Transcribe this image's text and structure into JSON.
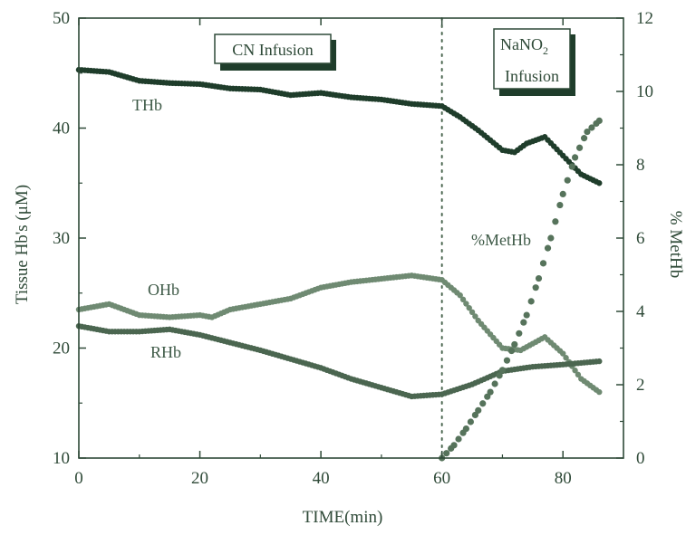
{
  "chart_data": {
    "type": "line",
    "xlabel": "TIME(min)",
    "ylabel": "Tissue Hb's (μM)",
    "y2label": "% MetHb",
    "xlim": [
      0,
      90
    ],
    "ylim": [
      10,
      50
    ],
    "y2lim": [
      0,
      12
    ],
    "x_ticks": [
      0,
      20,
      40,
      60,
      80
    ],
    "y_ticks": [
      10,
      20,
      30,
      40,
      50
    ],
    "y2_ticks": [
      0,
      2,
      4,
      6,
      8,
      10,
      12
    ],
    "grid": false,
    "vline": 60,
    "annotations": [
      {
        "text": "CN Infusion"
      },
      {
        "text": "NaNO",
        "sub": "2",
        "text2": "Infusion"
      }
    ],
    "series": [
      {
        "name": "THb",
        "axis": "left",
        "color": "#1f3d2b",
        "x": [
          0,
          5,
          10,
          15,
          20,
          25,
          30,
          35,
          40,
          45,
          50,
          55,
          60,
          63,
          66,
          70,
          72,
          74,
          77,
          80,
          83,
          86
        ],
        "y": [
          45.3,
          45.1,
          44.3,
          44.1,
          44.0,
          43.6,
          43.5,
          43.0,
          43.2,
          42.8,
          42.6,
          42.2,
          42.0,
          41.0,
          39.8,
          38.0,
          37.8,
          38.6,
          39.2,
          37.5,
          35.8,
          35.0
        ]
      },
      {
        "name": "OHb",
        "axis": "left",
        "color": "#6f8a72",
        "x": [
          0,
          5,
          10,
          15,
          20,
          22,
          25,
          30,
          35,
          40,
          45,
          50,
          55,
          60,
          63,
          66,
          70,
          73,
          77,
          80,
          83,
          86
        ],
        "y": [
          23.5,
          24.0,
          23.0,
          22.8,
          23.0,
          22.8,
          23.5,
          24.0,
          24.5,
          25.5,
          26.0,
          26.3,
          26.6,
          26.2,
          24.8,
          22.5,
          20.0,
          19.8,
          21.0,
          19.5,
          17.2,
          16.0
        ]
      },
      {
        "name": "RHb",
        "axis": "left",
        "color": "#4b6650",
        "x": [
          0,
          5,
          10,
          15,
          20,
          25,
          30,
          35,
          40,
          45,
          50,
          55,
          60,
          65,
          70,
          75,
          80,
          86
        ],
        "y": [
          22.0,
          21.5,
          21.5,
          21.7,
          21.2,
          20.5,
          19.8,
          19.0,
          18.2,
          17.2,
          16.4,
          15.6,
          15.8,
          16.7,
          17.9,
          18.3,
          18.5,
          18.8
        ]
      },
      {
        "name": "%MetHb",
        "axis": "right",
        "color": "#56735b",
        "x": [
          60,
          62,
          64,
          66,
          68,
          70,
          72,
          74,
          76,
          78,
          80,
          82,
          84,
          86
        ],
        "y": [
          0.0,
          0.35,
          0.8,
          1.3,
          1.8,
          2.4,
          3.1,
          3.9,
          4.9,
          6.0,
          7.2,
          8.2,
          8.9,
          9.2
        ]
      }
    ]
  }
}
